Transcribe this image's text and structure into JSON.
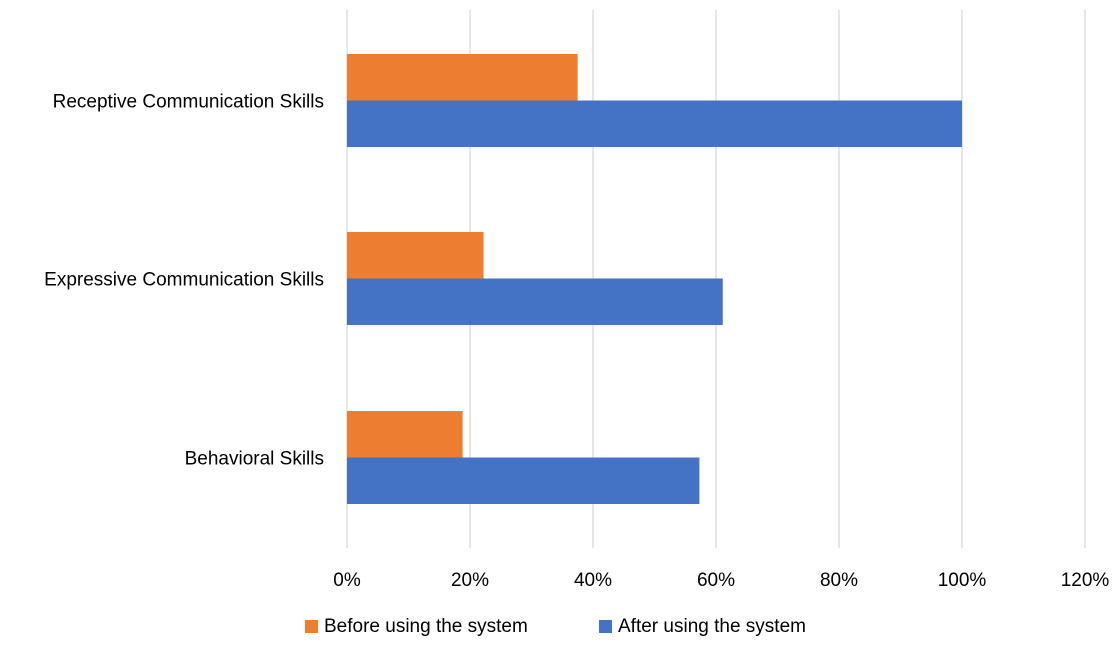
{
  "chart_data": {
    "type": "bar",
    "orientation": "horizontal",
    "categories": [
      "Receptive Communication Skills",
      "Expressive Communication Skills",
      "Behavioral Skills"
    ],
    "series": [
      {
        "name": "Before using the system",
        "color": "#ed7d31",
        "values": [
          0.375,
          0.222,
          0.188
        ]
      },
      {
        "name": "After using the system",
        "color": "#4472c4",
        "values": [
          1.0,
          0.611,
          0.573
        ]
      }
    ],
    "xticks": [
      "0%",
      "20%",
      "40%",
      "60%",
      "80%",
      "100%",
      "120%"
    ],
    "xlim": [
      0,
      1.2
    ],
    "xlabel": "",
    "ylabel": "",
    "grid": "vertical",
    "legend_position": "bottom"
  }
}
